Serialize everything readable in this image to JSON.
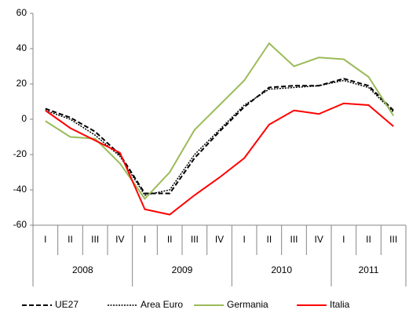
{
  "chart_data": {
    "type": "line",
    "groups": [
      {
        "label": "2008",
        "categories": [
          "I",
          "II",
          "III",
          "IV"
        ]
      },
      {
        "label": "2009",
        "categories": [
          "I",
          "II",
          "III",
          "IV"
        ]
      },
      {
        "label": "2010",
        "categories": [
          "I",
          "II",
          "III",
          "IV"
        ]
      },
      {
        "label": "2011",
        "categories": [
          "I",
          "II",
          "III"
        ]
      }
    ],
    "series": [
      {
        "name": "UE27",
        "color": "#000000",
        "dash": "dashed",
        "values": [
          6,
          1,
          -7,
          -20,
          -42,
          -42,
          -22,
          -7,
          7,
          18,
          19,
          19,
          23,
          19,
          5
        ]
      },
      {
        "name": "Area Euro",
        "color": "#000000",
        "dash": "dotted",
        "values": [
          5,
          0,
          -9,
          -21,
          -43,
          -40,
          -20,
          -6,
          8,
          17,
          18,
          19,
          22,
          18,
          4
        ]
      },
      {
        "name": "Germania",
        "color": "#9bbb59",
        "dash": "solid",
        "values": [
          -1,
          -10,
          -11,
          -25,
          -45,
          -30,
          -6,
          8,
          22,
          43,
          30,
          35,
          34,
          24,
          2
        ]
      },
      {
        "name": "Italia",
        "color": "#ff0000",
        "dash": "solid",
        "values": [
          5,
          -5,
          -12,
          -19,
          -51,
          -54,
          -43,
          -33,
          -22,
          -3,
          5,
          3,
          9,
          8,
          -4
        ]
      }
    ],
    "ylim": [
      -60,
      60
    ],
    "yticks": [
      -60,
      -40,
      -20,
      0,
      20,
      40,
      60
    ],
    "grid": false,
    "legend": "bottom"
  }
}
